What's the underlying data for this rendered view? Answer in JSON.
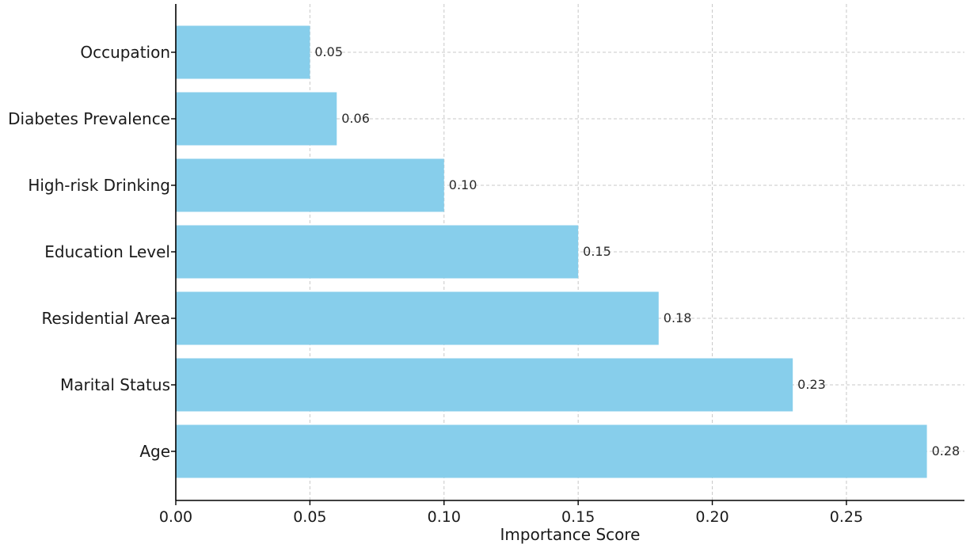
{
  "chart_data": {
    "type": "bar",
    "orientation": "horizontal",
    "categories": [
      "Age",
      "Marital Status",
      "Residential Area",
      "Education Level",
      "High-risk Drinking",
      "Diabetes Prevalence",
      "Occupation"
    ],
    "values": [
      0.28,
      0.23,
      0.18,
      0.15,
      0.1,
      0.06,
      0.05
    ],
    "value_labels": [
      "0.28",
      "0.23",
      "0.18",
      "0.15",
      "0.10",
      "0.06",
      "0.05"
    ],
    "title": "",
    "xlabel": "Importance Score",
    "ylabel": "",
    "xlim": [
      0,
      0.294
    ],
    "x_ticks": [
      0.0,
      0.05,
      0.1,
      0.15,
      0.2,
      0.25
    ],
    "x_tick_labels": [
      "0.00",
      "0.05",
      "0.10",
      "0.15",
      "0.20",
      "0.25"
    ],
    "grid": true,
    "legend": "none",
    "bar_color": "#87ceeb"
  }
}
